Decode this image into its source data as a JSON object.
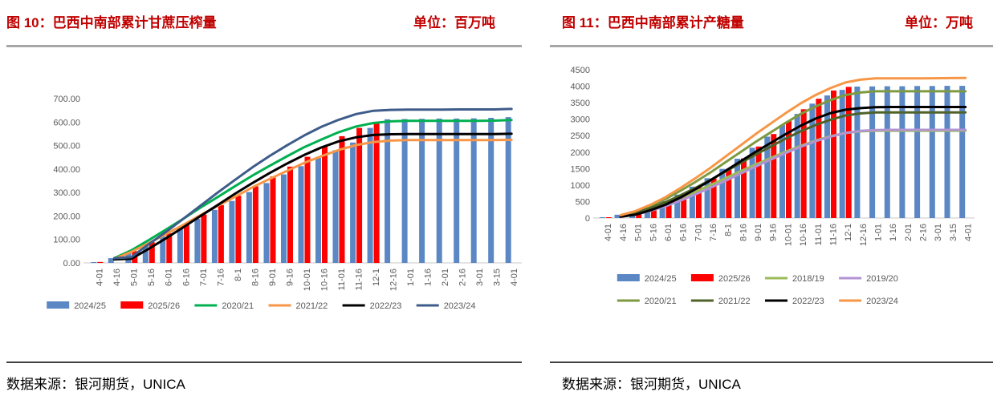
{
  "accent_color": "#C00000",
  "axis_text_color": "#595959",
  "panels": [
    {
      "title": "图 10：巴西中南部累计甘蔗压榨量",
      "unit": "单位：百万吨",
      "source": "数据来源：银河期货，UNICA"
    },
    {
      "title": "图 11：巴西中南部累计产糖量",
      "unit": "单位：万吨",
      "source": "数据来源：银河期货，UNICA"
    }
  ],
  "chart_data": [
    {
      "type": "combo-bar-line",
      "title": "图 10：巴西中南部累计甘蔗压榨量",
      "unit": "单位：百万吨",
      "xlabel": "",
      "ylabel": "",
      "ylim": [
        0,
        700
      ],
      "ytick_step": 100,
      "ytick_format": "fixed2",
      "grid": false,
      "legend_position": "bottom",
      "legend_rows": 1,
      "categories": [
        "4-01",
        "4-16",
        "5-01",
        "5-16",
        "6-01",
        "6-16",
        "7-01",
        "7-16",
        "8-1",
        "8-16",
        "9-01",
        "9-16",
        "10-01",
        "10-16",
        "11-01",
        "11-16",
        "12-1",
        "12-16",
        "1-01",
        "1-16",
        "2-01",
        "2-16",
        "3-01",
        "3-15",
        "4-01"
      ],
      "series": [
        {
          "name": "2024/25",
          "type": "bar",
          "color": "#5B87C5",
          "values": [
            2,
            20,
            45,
            78,
            113,
            150,
            188,
            226,
            264,
            302,
            340,
            377,
            412,
            447,
            480,
            513,
            575,
            612,
            613,
            614,
            615,
            615,
            616,
            618,
            621
          ]
        },
        {
          "name": "2025/26",
          "type": "bar",
          "color": "#FF0000",
          "values": [
            4,
            null,
            50,
            88,
            126,
            166,
            206,
            246,
            286,
            326,
            368,
            410,
            452,
            495,
            540,
            575,
            595,
            null,
            null,
            null,
            null,
            null,
            null,
            null,
            null
          ]
        },
        {
          "name": "2020/21",
          "type": "line",
          "color": "#00B050",
          "values": [
            null,
            20,
            54,
            97,
            142,
            188,
            236,
            281,
            327,
            372,
            414,
            454,
            493,
            526,
            557,
            581,
            596,
            603,
            605,
            605,
            605,
            605,
            605,
            606,
            609
          ]
        },
        {
          "name": "2021/22",
          "type": "line",
          "color": "#F79646",
          "values": [
            null,
            17,
            47,
            84,
            123,
            162,
            204,
            243,
            282,
            322,
            358,
            392,
            426,
            455,
            481,
            502,
            515,
            521,
            523,
            523,
            523,
            523,
            523,
            523,
            524
          ]
        },
        {
          "name": "2022/23",
          "type": "line",
          "color": "#000000",
          "values": [
            null,
            15,
            18,
            60,
            105,
            152,
            200,
            247,
            295,
            340,
            383,
            423,
            460,
            492,
            518,
            535,
            545,
            548,
            549,
            549,
            549,
            549,
            549,
            549,
            550
          ]
        },
        {
          "name": "2023/24",
          "type": "line",
          "color": "#3E5C8A",
          "values": [
            null,
            20,
            25,
            80,
            132,
            188,
            244,
            300,
            354,
            407,
            456,
            501,
            543,
            580,
            610,
            634,
            648,
            652,
            653,
            653,
            653,
            654,
            654,
            654,
            656
          ]
        }
      ]
    },
    {
      "type": "combo-bar-line",
      "title": "图 11：巴西中南部累计产糖量",
      "unit": "单位：万吨",
      "xlabel": "",
      "ylabel": "",
      "ylim": [
        0,
        4500
      ],
      "ytick_step": 500,
      "ytick_format": "integer",
      "grid": false,
      "legend_position": "bottom",
      "legend_rows": 2,
      "categories": [
        "4-01",
        "4-16",
        "5-01",
        "5-16",
        "6-01",
        "6-16",
        "7-01",
        "7-16",
        "8-1",
        "8-16",
        "9-01",
        "9-16",
        "10-01",
        "10-16",
        "11-01",
        "11-16",
        "12-1",
        "12-16",
        "1-01",
        "1-16",
        "2-01",
        "2-16",
        "3-01",
        "3-15",
        "4-01"
      ],
      "series": [
        {
          "name": "2024/25",
          "type": "bar",
          "color": "#5B87C5",
          "values": [
            5,
            100,
            200,
            340,
            510,
            710,
            950,
            1210,
            1490,
            1800,
            2130,
            2470,
            2820,
            3160,
            3470,
            3720,
            3890,
            3990,
            3995,
            4000,
            4000,
            4005,
            4005,
            4010,
            4010
          ]
        },
        {
          "name": "2025/26",
          "type": "bar",
          "color": "#FF0000",
          "values": [
            8,
            null,
            190,
            330,
            500,
            700,
            940,
            1200,
            1490,
            1810,
            2170,
            2550,
            2940,
            3300,
            3620,
            3870,
            3980,
            null,
            null,
            null,
            null,
            null,
            null,
            null,
            null
          ]
        },
        {
          "name": "2018/19",
          "type": "line",
          "color": "#9BBB59",
          "values": [
            null,
            60,
            150,
            280,
            430,
            610,
            800,
            1000,
            1210,
            1420,
            1620,
            1820,
            2010,
            2190,
            2350,
            2480,
            2580,
            2630,
            2650,
            2650,
            2650,
            2650,
            2650,
            2650,
            2650
          ]
        },
        {
          "name": "2019/20",
          "type": "line",
          "color": "#B293D3",
          "values": [
            null,
            40,
            110,
            220,
            360,
            530,
            720,
            920,
            1130,
            1350,
            1560,
            1770,
            1970,
            2160,
            2330,
            2470,
            2580,
            2645,
            2670,
            2676,
            2676,
            2676,
            2676,
            2676,
            2676
          ]
        },
        {
          "name": "2020/21",
          "type": "line",
          "color": "#7E9A40",
          "values": [
            null,
            77,
            192,
            365,
            577,
            827,
            1096,
            1385,
            1692,
            2000,
            2308,
            2596,
            2885,
            3154,
            3384,
            3577,
            3731,
            3808,
            3846,
            3846,
            3846,
            3846,
            3846,
            3846,
            3846
          ]
        },
        {
          "name": "2021/22",
          "type": "line",
          "color": "#4F6228",
          "values": [
            null,
            64,
            160,
            305,
            481,
            690,
            914,
            1155,
            1411,
            1668,
            1924,
            2165,
            2405,
            2630,
            2822,
            2983,
            3111,
            3175,
            3207,
            3207,
            3207,
            3207,
            3207,
            3207,
            3207
          ]
        },
        {
          "name": "2022/23",
          "type": "line",
          "color": "#000000",
          "values": [
            null,
            40,
            101,
            236,
            404,
            623,
            876,
            1146,
            1432,
            1719,
            2005,
            2275,
            2544,
            2797,
            3016,
            3184,
            3286,
            3336,
            3365,
            3370,
            3370,
            3370,
            3370,
            3370,
            3370
          ]
        },
        {
          "name": "2023/24",
          "type": "line",
          "color": "#F79646",
          "values": [
            null,
            85,
            212,
            403,
            636,
            912,
            1208,
            1526,
            1866,
            2205,
            2544,
            2862,
            3180,
            3477,
            3731,
            3943,
            4113,
            4198,
            4240,
            4240,
            4240,
            4240,
            4242,
            4248,
            4250
          ]
        }
      ]
    }
  ]
}
